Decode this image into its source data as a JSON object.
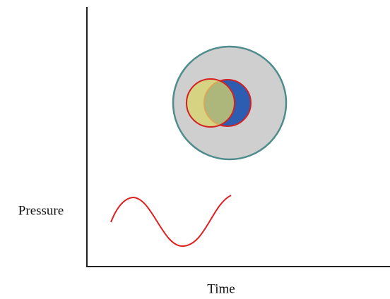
{
  "y_axis": {
    "label": "Pressure"
  },
  "x_axis": {
    "label": "Time"
  }
}
